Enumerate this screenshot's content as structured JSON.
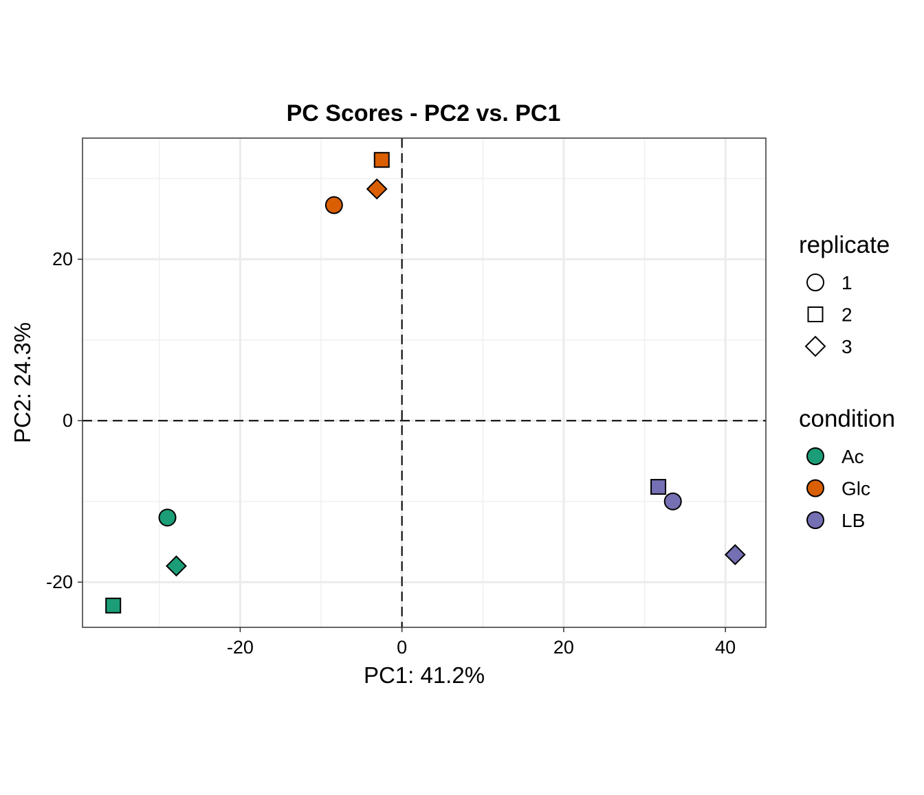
{
  "chart_data": {
    "type": "scatter",
    "title": "PC Scores - PC2 vs. PC1",
    "xlabel": "PC1: 41.2%",
    "ylabel": "PC2: 24.3%",
    "xlim": [
      -39.5,
      45.0
    ],
    "ylim": [
      -25.6,
      35.0
    ],
    "xticks": [
      -20,
      0,
      20,
      40
    ],
    "yticks": [
      -20,
      0,
      20
    ],
    "xtick_labels": [
      "-20",
      "0",
      "20",
      "40"
    ],
    "ytick_labels": [
      "-20",
      "0",
      "20"
    ],
    "x_minor_gridlines": [
      -30,
      -10,
      10,
      30
    ],
    "y_minor_gridlines": [
      -10,
      10,
      30
    ],
    "reference_lines": {
      "x": 0,
      "y": 0,
      "style": "dashed"
    },
    "grid": true,
    "legend_position": "right",
    "legends": [
      {
        "title": "replicate",
        "entries": [
          {
            "label": "1",
            "shape": "circle"
          },
          {
            "label": "2",
            "shape": "square"
          },
          {
            "label": "3",
            "shape": "diamond"
          }
        ]
      },
      {
        "title": "condition",
        "entries": [
          {
            "label": "Ac",
            "color": "#1b9e77"
          },
          {
            "label": "Glc",
            "color": "#d95f02"
          },
          {
            "label": "LB",
            "color": "#7570b3"
          }
        ]
      }
    ],
    "points": [
      {
        "x": -29.0,
        "y": -12.0,
        "condition": "Ac",
        "replicate": "1"
      },
      {
        "x": -35.7,
        "y": -22.9,
        "condition": "Ac",
        "replicate": "2"
      },
      {
        "x": -27.9,
        "y": -18.0,
        "condition": "Ac",
        "replicate": "3"
      },
      {
        "x": -8.4,
        "y": 26.7,
        "condition": "Glc",
        "replicate": "1"
      },
      {
        "x": -2.5,
        "y": 32.3,
        "condition": "Glc",
        "replicate": "2"
      },
      {
        "x": -3.1,
        "y": 28.7,
        "condition": "Glc",
        "replicate": "3"
      },
      {
        "x": 33.5,
        "y": -10.0,
        "condition": "LB",
        "replicate": "1"
      },
      {
        "x": 31.7,
        "y": -8.2,
        "condition": "LB",
        "replicate": "2"
      },
      {
        "x": 41.2,
        "y": -16.6,
        "condition": "LB",
        "replicate": "3"
      }
    ]
  }
}
